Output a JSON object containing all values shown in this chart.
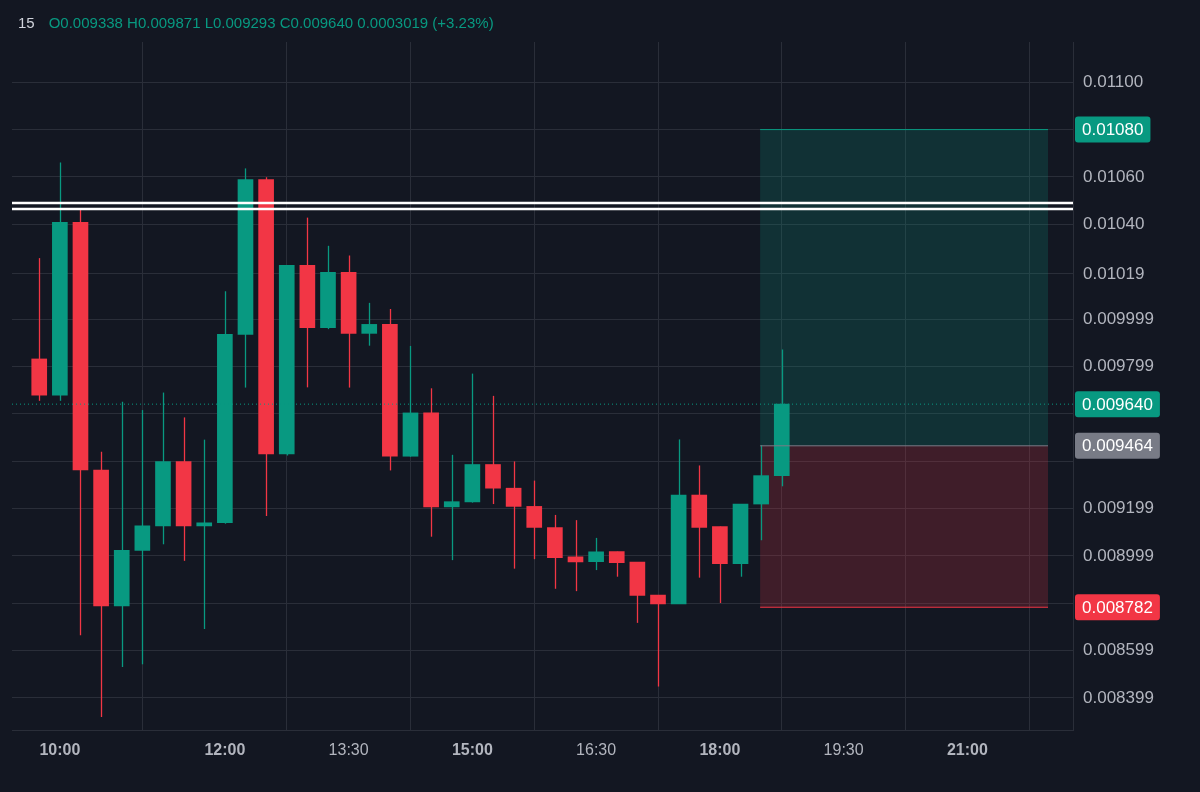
{
  "chart_data": {
    "type": "candlestick",
    "title": "15",
    "subtitle": "O0.009338 H0.009871 L0.009293 C0.009640 0.0003019 (+3.23%)",
    "x": [
      9.75,
      10,
      10.25,
      10.5,
      10.75,
      11,
      11.25,
      11.5,
      11.75,
      12,
      12.25,
      12.5,
      12.75,
      13,
      13.25,
      13.5,
      13.75,
      14,
      14.25,
      14.5,
      14.75,
      15,
      15.25,
      15.5,
      15.75,
      16,
      16.25,
      16.5,
      16.75,
      17,
      17.25,
      17.5,
      17.75,
      18,
      18.25,
      18.5,
      18.75
    ],
    "ohlc": [
      [
        0.009831,
        0.010257,
        0.009654,
        0.009678
      ],
      [
        0.009678,
        0.010661,
        0.009654,
        0.010408
      ],
      [
        0.010408,
        0.010465,
        0.008664,
        0.009362
      ],
      [
        0.009362,
        0.009439,
        0.008318,
        0.008788
      ],
      [
        0.008788,
        0.00965,
        0.00853,
        0.009022
      ],
      [
        0.009022,
        0.009615,
        0.008541,
        0.009126
      ],
      [
        0.009126,
        0.009689,
        0.009048,
        0.009397
      ],
      [
        0.009397,
        0.009584,
        0.008978,
        0.009126
      ],
      [
        0.009126,
        0.00949,
        0.00869,
        0.009139
      ],
      [
        0.009139,
        0.010117,
        0.009135,
        0.009935
      ],
      [
        0.009935,
        0.010636,
        0.00971,
        0.010589
      ],
      [
        0.010589,
        0.010599,
        0.009167,
        0.00943
      ],
      [
        0.00943,
        0.010227,
        0.009423,
        0.010227
      ],
      [
        0.010227,
        0.010428,
        0.009711,
        0.009963
      ],
      [
        0.009963,
        0.010309,
        0.009957,
        0.010197
      ],
      [
        0.010197,
        0.010268,
        0.00971,
        0.009939
      ],
      [
        0.009939,
        0.010068,
        0.009887,
        0.009977
      ],
      [
        0.009977,
        0.010042,
        0.00936,
        0.00942
      ],
      [
        0.00942,
        0.009886,
        0.009418,
        0.009603
      ],
      [
        0.009603,
        0.009707,
        0.00908,
        0.009206
      ],
      [
        0.009206,
        0.009426,
        0.008981,
        0.009228
      ],
      [
        0.009227,
        0.009769,
        0.009224,
        0.009385
      ],
      [
        0.009385,
        0.009675,
        0.009218,
        0.009285
      ],
      [
        0.009285,
        0.009398,
        0.008945,
        0.009208
      ],
      [
        0.009208,
        0.009317,
        0.008985,
        0.009119
      ],
      [
        0.009119,
        0.009172,
        0.00886,
        0.008991
      ],
      [
        0.008995,
        0.00915,
        0.00885,
        0.008973
      ],
      [
        0.008975,
        0.009075,
        0.008939,
        0.009016
      ],
      [
        0.009017,
        0.009017,
        0.008911,
        0.00897
      ],
      [
        0.008973,
        0.008973,
        0.008716,
        0.008832
      ],
      [
        0.008833,
        0.008833,
        0.008447,
        0.008796
      ],
      [
        0.008796,
        0.009491,
        0.008796,
        0.009256
      ],
      [
        0.009256,
        0.009381,
        0.008907,
        0.009119
      ],
      [
        0.009123,
        0.009123,
        0.0088,
        0.008966
      ],
      [
        0.008966,
        0.009218,
        0.008911,
        0.009218
      ],
      [
        0.009218,
        0.009466,
        0.009065,
        0.009338
      ],
      [
        0.009338,
        0.009871,
        0.009293,
        0.00964
      ]
    ],
    "colors": [
      "#f23645",
      "#089981",
      "#f23645",
      "#f23645",
      "#089981",
      "#089981",
      "#089981",
      "#f23645",
      "#089981",
      "#089981",
      "#089981",
      "#f23645",
      "#089981",
      "#f23645",
      "#089981",
      "#f23645",
      "#089981",
      "#f23645",
      "#089981",
      "#f23645",
      "#089981",
      "#089981",
      "#f23645",
      "#f23645",
      "#f23645",
      "#f23645",
      "#f23645",
      "#089981",
      "#f23645",
      "#f23645",
      "#f23645",
      "#089981",
      "#f23645",
      "#f23645",
      "#089981",
      "#089981",
      "#089981"
    ],
    "xlim": [
      9.42,
      22.28
    ],
    "xticks": [
      {
        "value": 10,
        "label": "10:00"
      },
      {
        "value": 12,
        "label": "12:00"
      },
      {
        "value": 13.5,
        "label": "13:30"
      },
      {
        "value": 15,
        "label": "15:00"
      },
      {
        "value": 16.5,
        "label": "16:30"
      },
      {
        "value": 18,
        "label": "18:00"
      },
      {
        "value": 19.5,
        "label": "19:30"
      },
      {
        "value": 21,
        "label": "21:00"
      }
    ],
    "ylim": [
      0.00826,
      0.01117
    ],
    "yticks": [
      {
        "value": 0.011,
        "label": "0.01100"
      },
      {
        "value": 0.0108,
        "label": null
      },
      {
        "value": 0.0106,
        "label": "0.01060"
      },
      {
        "value": 0.0104,
        "label": "0.01040"
      },
      0.01019,
      0.009999,
      0.009799,
      {
        "value": 0.009599,
        "label": null
      },
      {
        "value": 0.009399,
        "label": null
      },
      0.009199,
      0.008999,
      {
        "value": 0.008799,
        "label": null
      },
      0.008599,
      0.008399
    ],
    "grid": true,
    "bands": [
      {
        "axis": "y",
        "from": 0.009464,
        "to": 0.0108,
        "color": "#089981"
      },
      {
        "axis": "y",
        "from": 0.008782,
        "to": 0.009464,
        "color": "#f23645"
      }
    ],
    "ref_lines": [
      {
        "axis": "y",
        "value": 0.01049,
        "color": "#ffffff",
        "line_style": "solid"
      },
      {
        "axis": "y",
        "value": 0.010464,
        "color": "#ffffff",
        "line_style": "solid"
      },
      {
        "axis": "y",
        "value": 0.00964,
        "label": "0.009640",
        "color": "#089981",
        "line_style": "dotted"
      },
      {
        "axis": "y",
        "value": 0.0108,
        "label": "0.01080",
        "color": "#089981",
        "line_style": "solid"
      },
      {
        "axis": "y",
        "value": 0.009464,
        "label": "0.009464",
        "color": "#787b86",
        "line_style": "solid"
      },
      {
        "axis": "y",
        "value": 0.008782,
        "label": "0.008782",
        "color": "#f23645",
        "line_style": "solid"
      }
    ]
  }
}
